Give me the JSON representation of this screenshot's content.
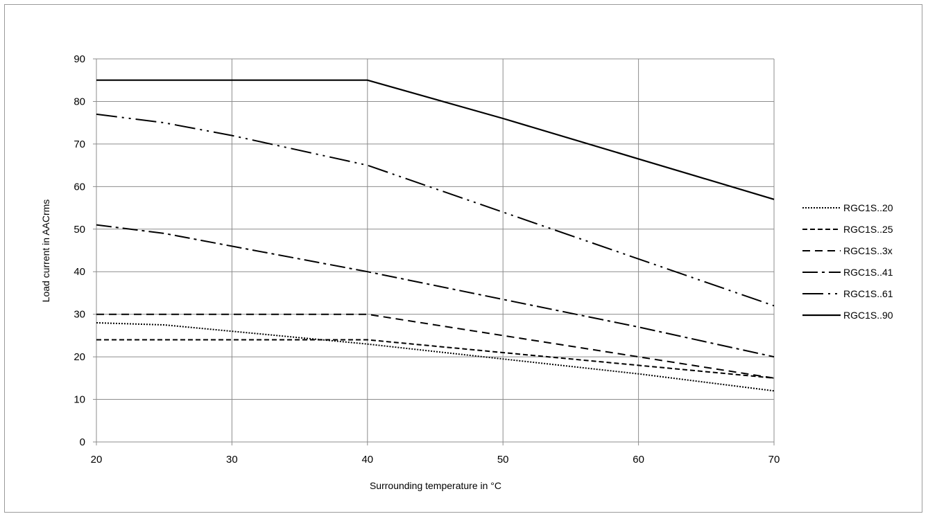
{
  "chart_data": {
    "type": "line",
    "title": "",
    "xlabel": "Surrounding temperature in °C",
    "ylabel": "Load current in AACrms",
    "xlim": [
      20,
      70
    ],
    "ylim": [
      0,
      90
    ],
    "xticks": [
      20,
      30,
      40,
      50,
      60,
      70
    ],
    "yticks": [
      0,
      10,
      20,
      30,
      40,
      50,
      60,
      70,
      80,
      90
    ],
    "grid": true,
    "legend_position": "right",
    "series": [
      {
        "name": "RGC1S..20",
        "style": "dotted",
        "x": [
          20,
          25,
          30,
          40,
          50,
          60,
          70
        ],
        "y": [
          28,
          27.5,
          26,
          23,
          19.5,
          16,
          12
        ]
      },
      {
        "name": "RGC1S..25",
        "style": "short-dash",
        "x": [
          20,
          40,
          50,
          60,
          70
        ],
        "y": [
          24,
          24,
          21,
          18,
          15
        ]
      },
      {
        "name": "RGC1S..3x",
        "style": "dash",
        "x": [
          20,
          40,
          50,
          60,
          70
        ],
        "y": [
          30,
          30,
          25,
          20,
          15
        ]
      },
      {
        "name": "RGC1S..41",
        "style": "dash-dot",
        "x": [
          20,
          25,
          30,
          40,
          50,
          60,
          70
        ],
        "y": [
          51,
          49,
          46,
          40,
          33.5,
          27,
          20
        ]
      },
      {
        "name": "RGC1S..61",
        "style": "dash-dot-dot",
        "x": [
          20,
          25,
          30,
          40,
          50,
          60,
          70
        ],
        "y": [
          77,
          75,
          72,
          65,
          54,
          43,
          32
        ]
      },
      {
        "name": "RGC1S..90",
        "style": "solid",
        "x": [
          20,
          40,
          50,
          60,
          70
        ],
        "y": [
          85,
          85,
          76,
          66.5,
          57
        ]
      }
    ]
  }
}
